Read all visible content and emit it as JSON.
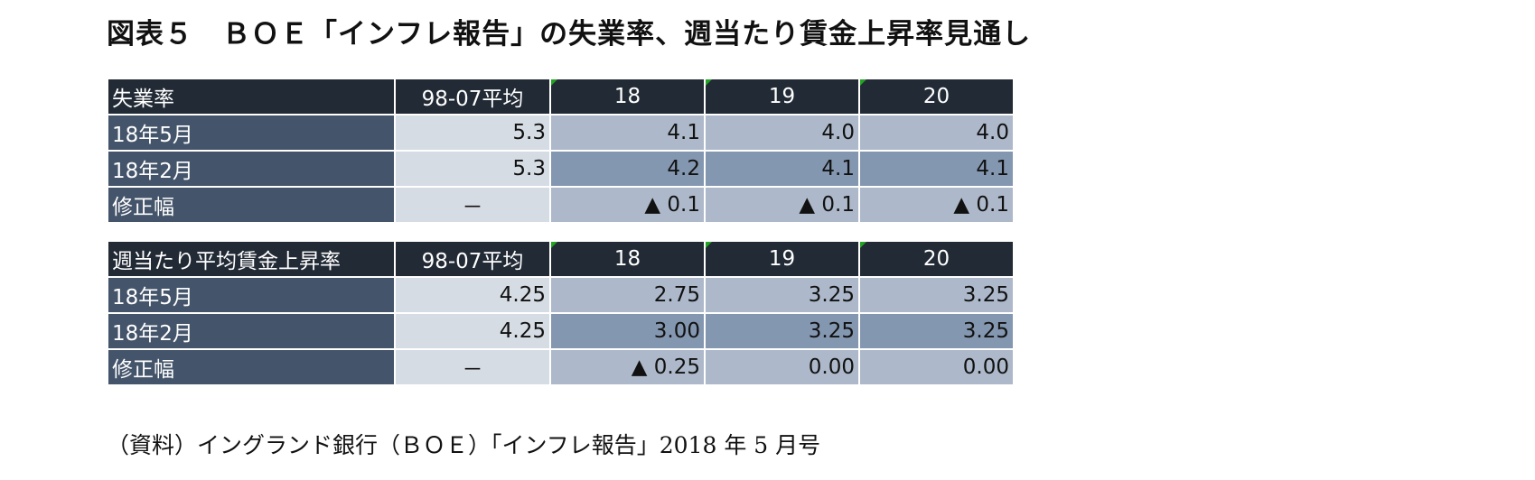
{
  "title": "図表５　ＢＯＥ「インフレ報告」の失業率、週当たり賃金上昇率見通し",
  "tables": [
    {
      "header": [
        "失業率",
        "98-07平均",
        "18",
        "19",
        "20"
      ],
      "rows": [
        [
          "18年5月",
          "5.3",
          "4.1",
          "4.0",
          "4.0"
        ],
        [
          "18年2月",
          "5.3",
          "4.2",
          "4.1",
          "4.1"
        ],
        [
          "修正幅",
          "－",
          "▲ 0.1",
          "▲ 0.1",
          "▲ 0.1"
        ]
      ]
    },
    {
      "header": [
        "週当たり平均賃金上昇率",
        "98-07平均",
        "18",
        "19",
        "20"
      ],
      "rows": [
        [
          "18年5月",
          "4.25",
          "2.75",
          "3.25",
          "3.25"
        ],
        [
          "18年2月",
          "4.25",
          "3.00",
          "3.25",
          "3.25"
        ],
        [
          "修正幅",
          "－",
          "▲ 0.25",
          "0.00",
          "0.00"
        ]
      ]
    }
  ],
  "source_note": "（資料）イングランド銀行（ＢＯＥ）「インフレ報告」2018 年 5 月号"
}
